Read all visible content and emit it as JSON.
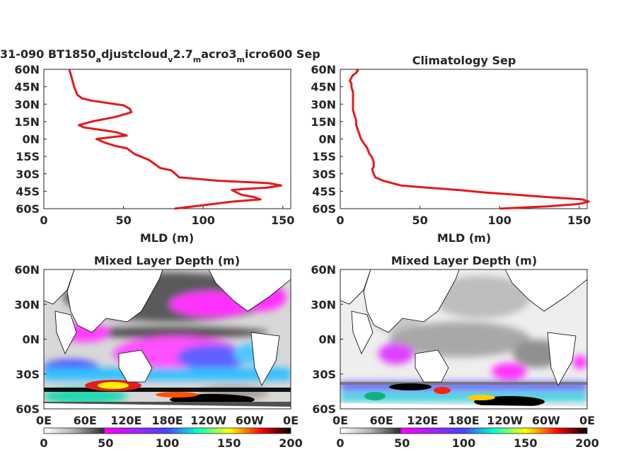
{
  "chart_data": [
    {
      "type": "line",
      "title": "31-090 BT1850",
      "title_subscripts": [
        {
          "sub": "a",
          "text": "djustcloud"
        },
        {
          "sub": "v",
          "text": "2.7"
        },
        {
          "sub": "m",
          "text": "acro3"
        },
        {
          "sub": "m",
          "text": "icro600 Sep"
        }
      ],
      "xlabel": "MLD (m)",
      "xlim": [
        0,
        155
      ],
      "ylim": [
        -60,
        60
      ],
      "xticks": [
        "0",
        "50",
        "100",
        "150"
      ],
      "yticks": [
        "60N",
        "45N",
        "30N",
        "15N",
        "0N",
        "15S",
        "30S",
        "45S",
        "60S"
      ],
      "line_color": "#e31a1c",
      "series": [
        {
          "x": [
            82,
            100,
            118,
            136,
            132,
            124,
            118,
            126,
            140,
            149,
            141,
            110,
            85,
            80,
            73,
            70,
            66,
            57,
            52,
            45,
            38,
            33,
            45,
            52,
            45,
            35,
            25,
            22,
            30,
            45,
            55,
            54,
            50,
            40,
            30,
            24,
            21,
            19,
            17,
            16
          ],
          "y": [
            -60,
            -57,
            -54,
            -52,
            -50,
            -48,
            -44,
            -43,
            -42,
            -40,
            -38,
            -36,
            -33,
            -27,
            -25,
            -22,
            -18,
            -13,
            -8,
            -6,
            -3,
            0,
            2,
            3,
            6,
            8,
            10,
            12,
            15,
            19,
            23,
            26,
            29,
            31,
            33,
            35,
            38,
            45,
            55,
            60
          ]
        }
      ]
    },
    {
      "type": "line",
      "title": "Climatology Sep",
      "xlabel": "MLD (m)",
      "xlim": [
        0,
        155
      ],
      "ylim": [
        -60,
        60
      ],
      "xticks": [
        "0",
        "50",
        "100",
        "150"
      ],
      "yticks": [
        "60N",
        "45N",
        "30N",
        "15N",
        "0N",
        "15S",
        "30S",
        "45S",
        "60S"
      ],
      "line_color": "#e31a1c",
      "series": [
        {
          "x": [
            100,
            130,
            150,
            156,
            152,
            130,
            110,
            90,
            75,
            55,
            38,
            27,
            22,
            21,
            20,
            21,
            21,
            20,
            18,
            17,
            15,
            13,
            12,
            11,
            10,
            10,
            9,
            8,
            8,
            8,
            8,
            7,
            7,
            6,
            7,
            8,
            10,
            11,
            10
          ],
          "y": [
            -60,
            -58,
            -56,
            -54,
            -52,
            -50,
            -48,
            -46,
            -44,
            -42,
            -40,
            -36,
            -33,
            -30,
            -26,
            -24,
            -20,
            -16,
            -12,
            -8,
            -4,
            0,
            4,
            8,
            12,
            16,
            20,
            25,
            30,
            35,
            40,
            45,
            48,
            50,
            53,
            55,
            57,
            59,
            60
          ]
        }
      ]
    },
    {
      "type": "heatmap",
      "title": "Mixed Layer Depth (m)",
      "xticks": [
        "0E",
        "60E",
        "120E",
        "180E",
        "120W",
        "60W",
        "0E"
      ],
      "yticks": [
        "60N",
        "30N",
        "0N",
        "30S",
        "60S"
      ],
      "colorbar": {
        "ticks": [
          "0",
          "50",
          "100",
          "150",
          "200"
        ],
        "colors": [
          "#ffffff",
          "#b0b0b0",
          "#303030",
          "#ff00ff",
          "#4444ff",
          "#00ffcc",
          "#ffff00",
          "#ff0000",
          "#000000"
        ]
      }
    },
    {
      "type": "heatmap",
      "title": "Mixed Layer Depth (m)",
      "xticks": [
        "0E",
        "60E",
        "120E",
        "180E",
        "120W",
        "60W",
        "0E"
      ],
      "yticks": [
        "60N",
        "30N",
        "0N",
        "30S",
        "60S"
      ],
      "colorbar": {
        "ticks": [
          "0",
          "50",
          "100",
          "150",
          "200"
        ],
        "colors": [
          "#ffffff",
          "#b0b0b0",
          "#303030",
          "#ff00ff",
          "#4444ff",
          "#00ffcc",
          "#ffff00",
          "#ff0000",
          "#000000"
        ]
      }
    }
  ]
}
